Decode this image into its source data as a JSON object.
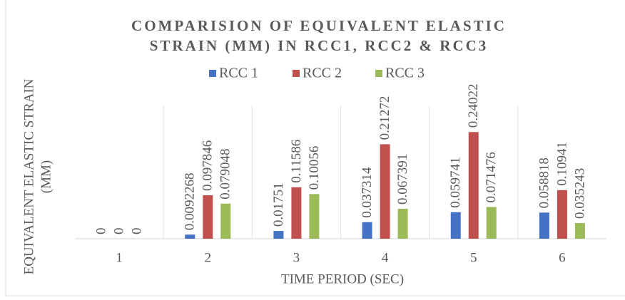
{
  "chart_data": {
    "type": "bar",
    "title": [
      "COMPARISION OF EQUIVALENT ELASTIC",
      "STRAIN (MM) IN RCC1, RCC2 & RCC3"
    ],
    "xlabel": "TIME PERIOD (SEC)",
    "ylabel": [
      "EQUIVALENT ELASTIC STRAIN",
      "(MM)"
    ],
    "categories": [
      "1",
      "2",
      "3",
      "4",
      "5",
      "6"
    ],
    "series": [
      {
        "name": "RCC 1",
        "color": "#4472c4",
        "values": [
          0,
          0.0092268,
          0.01751,
          0.037314,
          0.059741,
          0.058818
        ]
      },
      {
        "name": "RCC 2",
        "color": "#c0504d",
        "values": [
          0,
          0.097846,
          0.11586,
          0.21272,
          0.24022,
          0.10941
        ]
      },
      {
        "name": "RCC 3",
        "color": "#9bbb59",
        "values": [
          0,
          0.079048,
          0.10056,
          0.067391,
          0.071476,
          0.035243
        ]
      }
    ],
    "ylim": [
      0,
      0.3
    ],
    "legend": "top"
  }
}
